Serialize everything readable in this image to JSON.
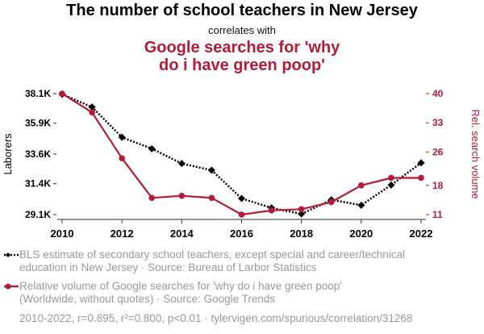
{
  "chart_data": {
    "type": "line",
    "title": "The number of school teachers in New Jersey",
    "subtitle": "correlates with",
    "title2_lines": [
      "Google searches for 'why",
      "do i have green poop'"
    ],
    "x": [
      2010,
      2011,
      2012,
      2013,
      2014,
      2015,
      2016,
      2017,
      2018,
      2019,
      2020,
      2021,
      2022
    ],
    "x_ticks": [
      "2010",
      "2012",
      "2014",
      "2016",
      "2018",
      "2020",
      "2022"
    ],
    "xlim": [
      2010,
      2022
    ],
    "left_axis": {
      "label": "Laborers",
      "ticks": [
        "38.1K",
        "35.9K",
        "33.6K",
        "31.4K",
        "29.1K"
      ],
      "tick_values": [
        38100,
        35900,
        33600,
        31400,
        29100
      ],
      "ylim": [
        29100,
        38100
      ]
    },
    "right_axis": {
      "label": "Rel. search volume",
      "ticks": [
        "40",
        "33",
        "26",
        "18",
        "11"
      ],
      "tick_values": [
        40,
        33,
        26,
        18,
        11
      ],
      "ylim": [
        11,
        40
      ]
    },
    "series": [
      {
        "name": "BLS estimate of secondary school teachers, except special and career/technical education in New Jersey",
        "axis": "left",
        "color": "#000000",
        "style": "dotted",
        "marker": "diamond",
        "values": [
          38050,
          37100,
          34850,
          34000,
          32900,
          32400,
          30300,
          29600,
          29150,
          30200,
          29800,
          31300,
          32950
        ]
      },
      {
        "name": "Relative volume of Google searches for 'why do i have green poop'",
        "axis": "right",
        "color": "#b31b36",
        "style": "solid",
        "marker": "circle",
        "values": [
          40,
          35.5,
          24.5,
          15,
          15.5,
          15,
          11,
          12,
          12.3,
          14,
          18,
          19.8,
          19.8
        ]
      }
    ]
  },
  "legend": {
    "item1_line1": "BLS estimate of secondary school teachers, except special and career/technical",
    "item1_line2": "education in New Jersey · Source: Bureau of Larbor Statistics",
    "item2_line1": "Relative volume of Google searches for 'why do i have green poop'",
    "item2_line2": "(Worldwide, without quotes) · Source: Google Trends"
  },
  "footer": "2010-2022, r=0.895, r²=0.800, p<0.01 · tylervigen.com/spurious/correlation/31268"
}
